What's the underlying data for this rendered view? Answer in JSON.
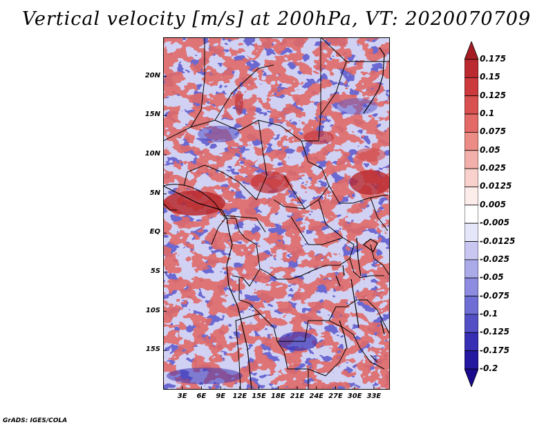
{
  "title": "Vertical velocity [m/s] at 200hPa, VT: 2020070709",
  "credit": "GrADS: IGES/COLA",
  "map": {
    "lon_range": [
      0,
      35.5
    ],
    "lat_range": [
      -20,
      25
    ],
    "lat_ticks": [
      {
        "value": 20,
        "label": "20N"
      },
      {
        "value": 15,
        "label": "15N"
      },
      {
        "value": 10,
        "label": "10N"
      },
      {
        "value": 5,
        "label": "5N"
      },
      {
        "value": 0,
        "label": "EQ"
      },
      {
        "value": -5,
        "label": "5S"
      },
      {
        "value": -10,
        "label": "10S"
      },
      {
        "value": -15,
        "label": "15S"
      }
    ],
    "lon_ticks": [
      {
        "value": 3,
        "label": "3E"
      },
      {
        "value": 6,
        "label": "6E"
      },
      {
        "value": 9,
        "label": "9E"
      },
      {
        "value": 12,
        "label": "12E"
      },
      {
        "value": 15,
        "label": "15E"
      },
      {
        "value": 18,
        "label": "18E"
      },
      {
        "value": 21,
        "label": "21E"
      },
      {
        "value": 24,
        "label": "24E"
      },
      {
        "value": 27,
        "label": "27E"
      },
      {
        "value": 30,
        "label": "30E"
      },
      {
        "value": 33,
        "label": "33E"
      }
    ]
  },
  "colorbar": {
    "levels": [
      "0.175",
      "0.15",
      "0.125",
      "0.1",
      "0.075",
      "0.05",
      "0.025",
      "0.0125",
      "0.005",
      "-0.005",
      "-0.0125",
      "-0.025",
      "-0.05",
      "-0.075",
      "-0.1",
      "-0.125",
      "-0.175",
      "-0.2"
    ],
    "colors": [
      "#a51d24",
      "#bb2a30",
      "#cc3a3d",
      "#d8504f",
      "#e36a66",
      "#ec8c86",
      "#f3b0aa",
      "#f8d0cc",
      "#fcecea",
      "#ffffff",
      "#e6e6fa",
      "#c9c7f2",
      "#ababea",
      "#8d8ce0",
      "#6f6ed4",
      "#5350c6",
      "#3730b4",
      "#2518a0",
      "#1a0a8c"
    ]
  }
}
